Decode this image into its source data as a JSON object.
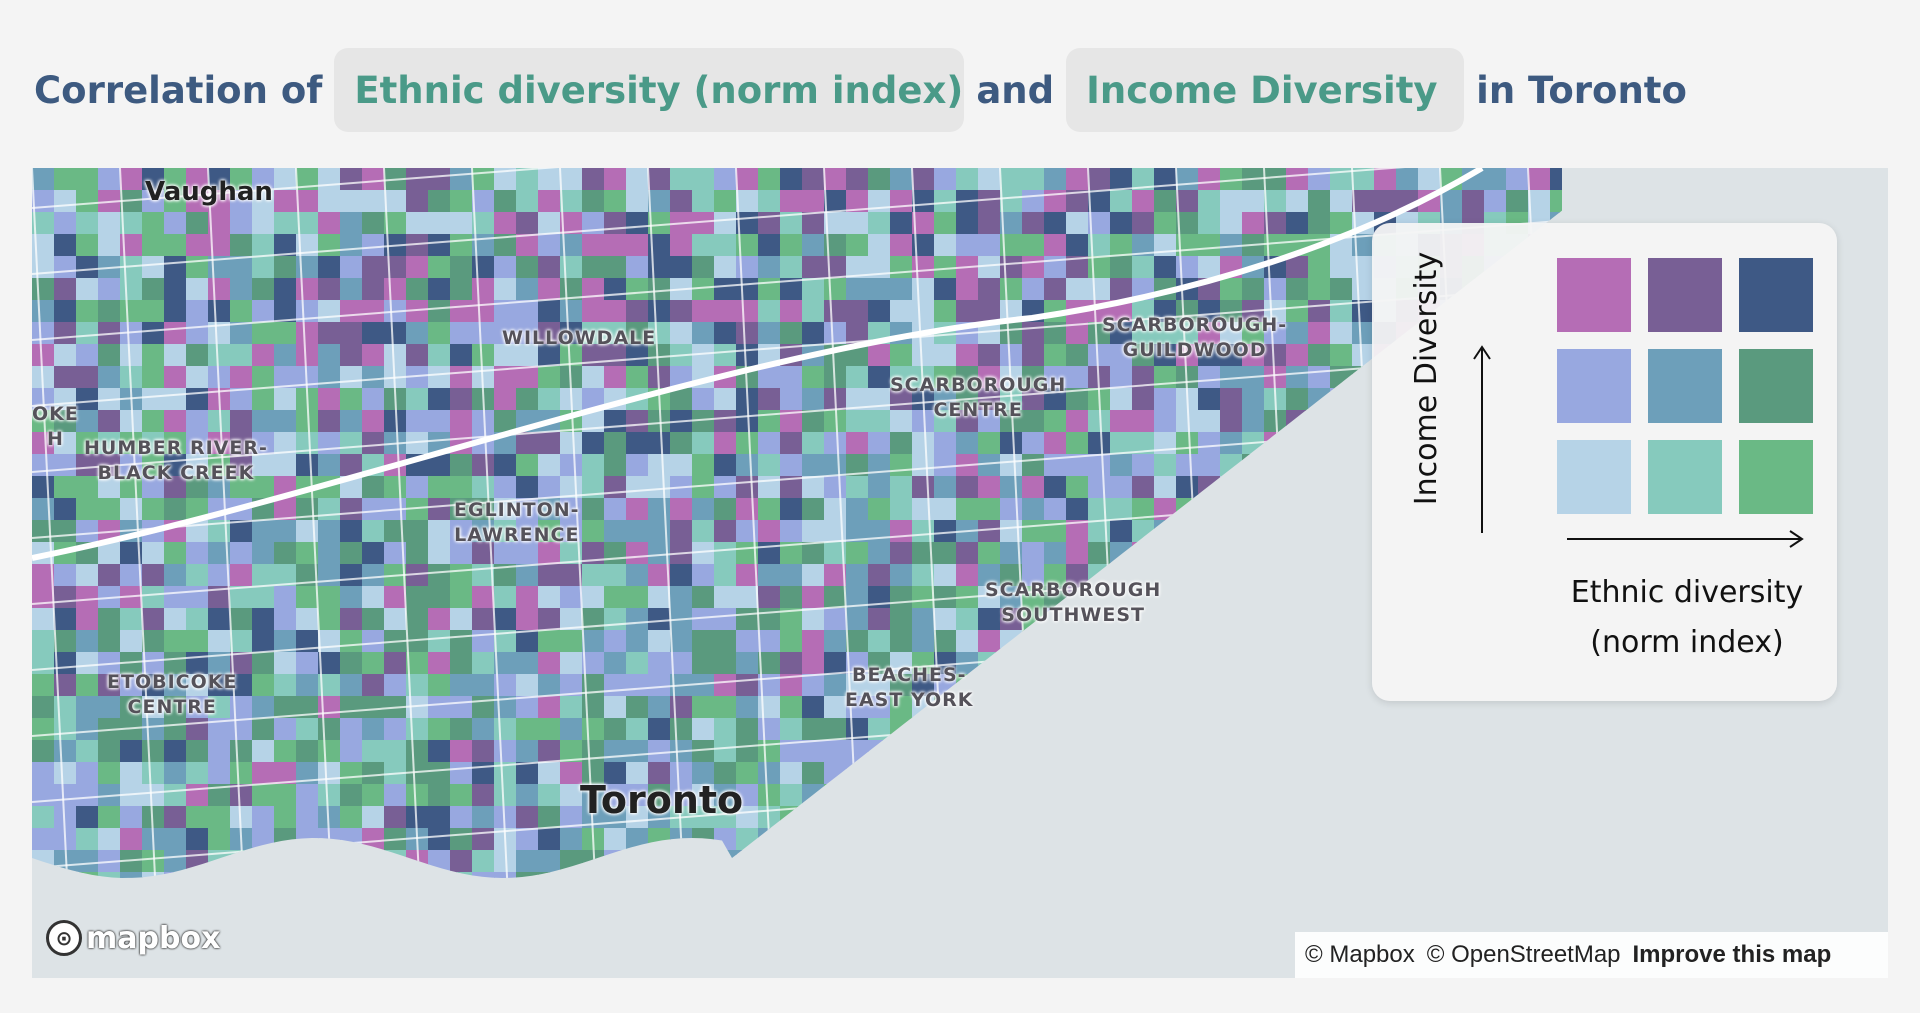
{
  "header": {
    "prefix": "Correlation of",
    "select_ethnic": "Ethnic diversity (norm index)",
    "connector": "and",
    "select_income": "Income Diversity",
    "suffix": "in Toronto"
  },
  "legend": {
    "y_label": "Income Diversity",
    "x_label_line1": "Ethnic diversity",
    "x_label_line2": "(norm index)",
    "colors": [
      [
        "#b56db5",
        "#785f95",
        "#3e5985"
      ],
      [
        "#98a8e0",
        "#6d9fba",
        "#5a9a7e"
      ],
      [
        "#b6d3e7",
        "#86cabd",
        "#6ab985"
      ]
    ]
  },
  "places": {
    "vaughan": "Vaughan",
    "willowdale": "WILLOWDALE",
    "humber": "HUMBER RIVER-\nBLACK CREEK",
    "oke": "OKE\nH",
    "eglinton": "EGLINTON-\nLAWRENCE",
    "scarb_centre": "SCARBOROUGH\nCENTRE",
    "scarb_guildwood": "SCARBOROUGH-\nGUILDWOOD",
    "scarb_sw": "SCARBOROUGH\nSOUTHWEST",
    "beaches": "BEACHES-\nEAST YORK",
    "etobicoke": "ETOBICOKE\nCENTRE",
    "toronto": "Toronto"
  },
  "map": {
    "water_color": "#dde3e6",
    "logo_text": "mapbox",
    "logo_icon": "mapbox-logo-icon",
    "attribution_mapbox": "© Mapbox",
    "attribution_osm": "© OpenStreetMap",
    "improve_link": "Improve this map"
  }
}
